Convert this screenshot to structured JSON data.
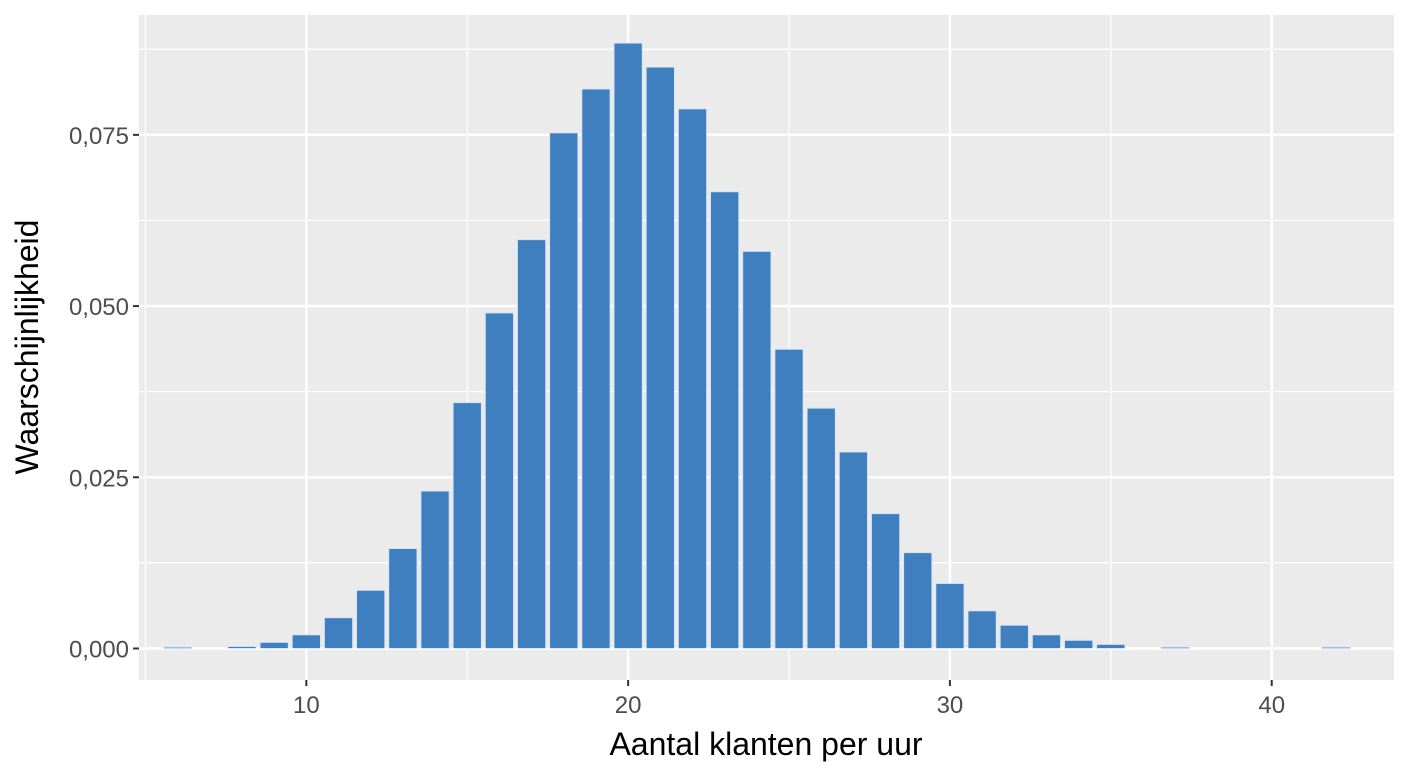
{
  "chart_data": {
    "type": "bar",
    "title": "",
    "xlabel": "Aantal klanten per uur",
    "ylabel": "Waarschijnlijkheid",
    "x_ticks": [
      10,
      20,
      30,
      40
    ],
    "x_tick_labels": [
      "10",
      "20",
      "30",
      "40"
    ],
    "y_ticks": [
      0,
      0.025,
      0.05,
      0.075
    ],
    "y_tick_labels": [
      "0,000",
      "0,025",
      "0,050",
      "0,075"
    ],
    "xlim": [
      4.8,
      43.8
    ],
    "ylim": [
      -0.0046,
      0.0925
    ],
    "grid": true,
    "legend": null,
    "bar_color": "#3F7FBF",
    "panel_background": "#EBEBEB",
    "categories": [
      6,
      8,
      9,
      10,
      11,
      12,
      13,
      14,
      15,
      16,
      17,
      18,
      19,
      20,
      21,
      22,
      23,
      24,
      25,
      26,
      27,
      28,
      29,
      30,
      31,
      32,
      33,
      34,
      35,
      37,
      42
    ],
    "values": [
      0.0002,
      0.0003,
      0.0009,
      0.002,
      0.0045,
      0.0085,
      0.0146,
      0.023,
      0.0359,
      0.049,
      0.0597,
      0.0753,
      0.0817,
      0.0884,
      0.0849,
      0.0788,
      0.0667,
      0.058,
      0.0437,
      0.0351,
      0.0287,
      0.0197,
      0.014,
      0.0095,
      0.0055,
      0.0034,
      0.002,
      0.0012,
      0.0006,
      0.0002,
      0.0002
    ]
  }
}
